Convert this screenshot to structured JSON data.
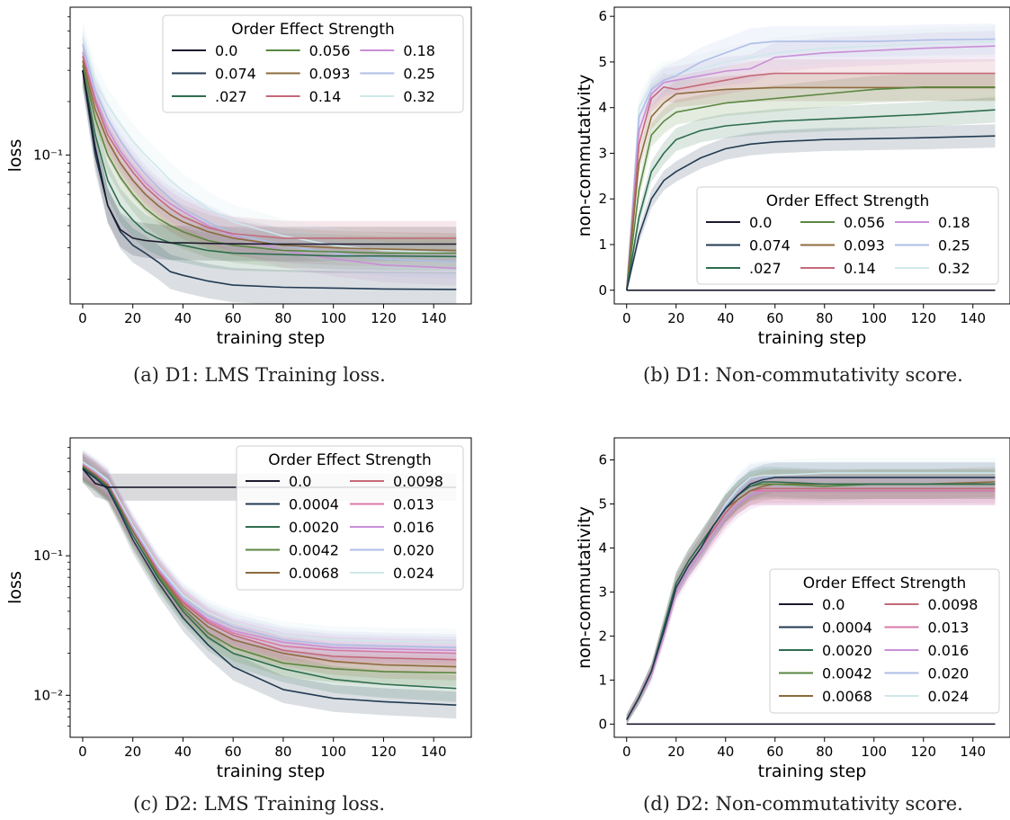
{
  "chart_data": [
    {
      "type": "line",
      "caption": "(a) D1: LMS Training loss.",
      "xlabel": "training step",
      "ylabel": "loss",
      "xticks": [
        "0",
        "20",
        "40",
        "60",
        "80",
        "100",
        "120",
        "140"
      ],
      "yticks": [
        {
          "value": 0.1,
          "label": "10⁻¹"
        }
      ],
      "yscale": "log",
      "xlim": [
        0,
        150
      ],
      "ylim": [
        0.0145,
        0.68
      ],
      "legend": {
        "title": "Order Effect Strength",
        "placement": "top-right",
        "ncol": 3
      },
      "x": [
        0,
        5,
        10,
        15,
        20,
        25,
        30,
        35,
        40,
        50,
        60,
        80,
        100,
        120,
        149
      ],
      "series": [
        {
          "name": "0.0",
          "color": "#1a1a2e",
          "values": [
            0.3,
            0.11,
            0.052,
            0.038,
            0.034,
            0.033,
            0.0325,
            0.032,
            0.032,
            0.0318,
            0.0316,
            0.0315,
            0.0315,
            0.0315,
            0.0315
          ]
        },
        {
          "name": "0.074",
          "color": "#223a52",
          "values": [
            0.3,
            0.1,
            0.052,
            0.037,
            0.031,
            0.028,
            0.025,
            0.022,
            0.021,
            0.0195,
            0.0185,
            0.018,
            0.0178,
            0.0176,
            0.0175
          ]
        },
        {
          "name": ".027",
          "color": "#2e6d4e",
          "values": [
            0.3,
            0.13,
            0.072,
            0.052,
            0.043,
            0.037,
            0.034,
            0.032,
            0.031,
            0.029,
            0.028,
            0.0275,
            0.027,
            0.027,
            0.0268
          ]
        },
        {
          "name": "0.056",
          "color": "#5a8741",
          "values": [
            0.32,
            0.16,
            0.1,
            0.075,
            0.06,
            0.05,
            0.044,
            0.04,
            0.037,
            0.033,
            0.031,
            0.029,
            0.0285,
            0.028,
            0.028
          ]
        },
        {
          "name": "0.093",
          "color": "#8c6b3c",
          "values": [
            0.34,
            0.18,
            0.12,
            0.09,
            0.072,
            0.06,
            0.052,
            0.046,
            0.042,
            0.037,
            0.034,
            0.031,
            0.03,
            0.0295,
            0.029
          ]
        },
        {
          "name": "0.14",
          "color": "#c46a7a",
          "values": [
            0.36,
            0.2,
            0.13,
            0.1,
            0.08,
            0.066,
            0.057,
            0.05,
            0.045,
            0.039,
            0.036,
            0.034,
            0.034,
            0.034,
            0.034
          ]
        },
        {
          "name": "0.18",
          "color": "#c98fd6",
          "values": [
            0.38,
            0.21,
            0.14,
            0.105,
            0.085,
            0.07,
            0.06,
            0.053,
            0.048,
            0.04,
            0.035,
            0.029,
            0.026,
            0.024,
            0.023
          ]
        },
        {
          "name": "0.25",
          "color": "#aebee6",
          "values": [
            0.42,
            0.23,
            0.16,
            0.12,
            0.095,
            0.078,
            0.066,
            0.057,
            0.05,
            0.042,
            0.036,
            0.031,
            0.028,
            0.026,
            0.025
          ]
        },
        {
          "name": "0.32",
          "color": "#cfe8ea",
          "values": [
            0.46,
            0.26,
            0.19,
            0.15,
            0.12,
            0.1,
            0.085,
            0.072,
            0.063,
            0.05,
            0.042,
            0.035,
            0.031,
            0.029,
            0.028
          ]
        }
      ]
    },
    {
      "type": "line",
      "caption": "(b) D1: Non-commutativity score.",
      "xlabel": "training step",
      "ylabel": "non-commutativity",
      "xticks": [
        "0",
        "20",
        "40",
        "60",
        "80",
        "100",
        "120",
        "140"
      ],
      "yticks": [
        {
          "value": 0,
          "label": "0"
        },
        {
          "value": 1,
          "label": "1"
        },
        {
          "value": 2,
          "label": "2"
        },
        {
          "value": 3,
          "label": "3"
        },
        {
          "value": 4,
          "label": "4"
        },
        {
          "value": 5,
          "label": "5"
        },
        {
          "value": 6,
          "label": "6"
        }
      ],
      "yscale": "linear",
      "xlim": [
        0,
        150
      ],
      "ylim": [
        -0.3,
        6.2
      ],
      "legend": {
        "title": "Order Effect Strength",
        "placement": "lower-right",
        "ncol": 3
      },
      "x": [
        0,
        5,
        10,
        15,
        20,
        30,
        40,
        50,
        60,
        80,
        100,
        120,
        149
      ],
      "series": [
        {
          "name": "0.0",
          "color": "#1a1a2e",
          "values": [
            0,
            0,
            0,
            0,
            0,
            0,
            0,
            0,
            0,
            0,
            0,
            0,
            0
          ]
        },
        {
          "name": "0.074",
          "color": "#223a52",
          "values": [
            0,
            1.2,
            2.0,
            2.4,
            2.6,
            2.9,
            3.1,
            3.2,
            3.25,
            3.3,
            3.32,
            3.34,
            3.38
          ]
        },
        {
          "name": ".027",
          "color": "#2e6d4e",
          "values": [
            0,
            1.6,
            2.6,
            3.0,
            3.3,
            3.5,
            3.6,
            3.65,
            3.7,
            3.75,
            3.8,
            3.85,
            3.95
          ]
        },
        {
          "name": "0.056",
          "color": "#5a8741",
          "values": [
            0,
            2.2,
            3.4,
            3.7,
            3.9,
            4.0,
            4.1,
            4.15,
            4.2,
            4.3,
            4.4,
            4.45,
            4.45
          ]
        },
        {
          "name": "0.093",
          "color": "#8c6b3c",
          "values": [
            0,
            2.8,
            3.8,
            4.1,
            4.3,
            4.35,
            4.4,
            4.42,
            4.44,
            4.44,
            4.44,
            4.44,
            4.44
          ]
        },
        {
          "name": "0.14",
          "color": "#c46a7a",
          "values": [
            0,
            3.2,
            4.2,
            4.45,
            4.4,
            4.5,
            4.6,
            4.7,
            4.75,
            4.75,
            4.75,
            4.75,
            4.75
          ]
        },
        {
          "name": "0.18",
          "color": "#c98fd6",
          "values": [
            0,
            3.5,
            4.3,
            4.55,
            4.6,
            4.7,
            4.8,
            4.85,
            5.1,
            5.2,
            5.25,
            5.3,
            5.35
          ]
        },
        {
          "name": "0.25",
          "color": "#aebee6",
          "values": [
            0,
            3.8,
            4.4,
            4.6,
            4.7,
            5.0,
            5.2,
            5.4,
            5.45,
            5.45,
            5.45,
            5.48,
            5.5
          ]
        },
        {
          "name": "0.32",
          "color": "#cfe8ea",
          "values": [
            0,
            4.0,
            4.5,
            4.7,
            4.75,
            4.85,
            5.0,
            5.1,
            5.2,
            5.3,
            5.35,
            5.4,
            5.45
          ]
        }
      ]
    },
    {
      "type": "line",
      "caption": "(c) D2: LMS Training loss.",
      "xlabel": "training step",
      "ylabel": "loss",
      "xticks": [
        "0",
        "20",
        "40",
        "60",
        "80",
        "100",
        "120",
        "140"
      ],
      "yticks": [
        {
          "value": 0.1,
          "label": "10⁻¹"
        },
        {
          "value": 0.01,
          "label": "10⁻²"
        }
      ],
      "yscale": "log",
      "xlim": [
        0,
        150
      ],
      "ylim": [
        0.005,
        0.7
      ],
      "legend": {
        "title": "Order Effect Strength",
        "placement": "top-right",
        "ncol": 2
      },
      "x": [
        0,
        5,
        10,
        15,
        20,
        30,
        40,
        50,
        60,
        80,
        100,
        120,
        149
      ],
      "series": [
        {
          "name": "0.0",
          "color": "#1a1a2e",
          "values": [
            0.42,
            0.33,
            0.31,
            0.31,
            0.31,
            0.31,
            0.31,
            0.31,
            0.31,
            0.31,
            0.31,
            0.31,
            0.31
          ]
        },
        {
          "name": "0.0004",
          "color": "#223a52",
          "values": [
            0.42,
            0.36,
            0.3,
            0.2,
            0.13,
            0.065,
            0.036,
            0.023,
            0.016,
            0.011,
            0.0095,
            0.009,
            0.0085
          ]
        },
        {
          "name": "0.0020",
          "color": "#2e6d4e",
          "values": [
            0.43,
            0.37,
            0.31,
            0.21,
            0.14,
            0.07,
            0.04,
            0.026,
            0.02,
            0.0155,
            0.013,
            0.012,
            0.0112
          ]
        },
        {
          "name": "0.0042",
          "color": "#5a8741",
          "values": [
            0.43,
            0.37,
            0.31,
            0.21,
            0.14,
            0.072,
            0.042,
            0.028,
            0.022,
            0.017,
            0.0155,
            0.0148,
            0.0145
          ]
        },
        {
          "name": "0.0068",
          "color": "#8c6b3c",
          "values": [
            0.44,
            0.38,
            0.32,
            0.22,
            0.15,
            0.075,
            0.044,
            0.031,
            0.025,
            0.02,
            0.0175,
            0.0165,
            0.016
          ]
        },
        {
          "name": "0.0098",
          "color": "#c46a7a",
          "values": [
            0.44,
            0.38,
            0.32,
            0.22,
            0.15,
            0.077,
            0.046,
            0.033,
            0.027,
            0.021,
            0.019,
            0.0185,
            0.018
          ]
        },
        {
          "name": "0.013",
          "color": "#d879a8",
          "values": [
            0.45,
            0.39,
            0.33,
            0.22,
            0.15,
            0.078,
            0.047,
            0.034,
            0.028,
            0.0225,
            0.021,
            0.0205,
            0.02
          ]
        },
        {
          "name": "0.016",
          "color": "#c98fd6",
          "values": [
            0.45,
            0.39,
            0.33,
            0.23,
            0.155,
            0.08,
            0.048,
            0.035,
            0.029,
            0.024,
            0.022,
            0.0215,
            0.021
          ]
        },
        {
          "name": "0.020",
          "color": "#aebee6",
          "values": [
            0.46,
            0.4,
            0.34,
            0.23,
            0.16,
            0.082,
            0.05,
            0.037,
            0.031,
            0.025,
            0.023,
            0.0225,
            0.022
          ]
        },
        {
          "name": "0.024",
          "color": "#cfe8ea",
          "values": [
            0.47,
            0.41,
            0.35,
            0.24,
            0.165,
            0.085,
            0.052,
            0.039,
            0.033,
            0.027,
            0.025,
            0.0245,
            0.024
          ]
        }
      ]
    },
    {
      "type": "line",
      "caption": "(d) D2: Non-commutativity score.",
      "xlabel": "training step",
      "ylabel": "non-commutativity",
      "xticks": [
        "0",
        "20",
        "40",
        "60",
        "80",
        "100",
        "120",
        "140"
      ],
      "yticks": [
        {
          "value": 0,
          "label": "0"
        },
        {
          "value": 1,
          "label": "1"
        },
        {
          "value": 2,
          "label": "2"
        },
        {
          "value": 3,
          "label": "3"
        },
        {
          "value": 4,
          "label": "4"
        },
        {
          "value": 5,
          "label": "5"
        },
        {
          "value": 6,
          "label": "6"
        }
      ],
      "yscale": "linear",
      "xlim": [
        0,
        150
      ],
      "ylim": [
        -0.3,
        6.5
      ],
      "legend": {
        "title": "Order Effect Strength",
        "placement": "lower-right",
        "ncol": 2
      },
      "x": [
        0,
        5,
        10,
        15,
        20,
        25,
        30,
        35,
        40,
        45,
        50,
        55,
        60,
        80,
        100,
        120,
        149
      ],
      "series": [
        {
          "name": "0.0",
          "color": "#1a1a2e",
          "values": [
            0,
            0,
            0,
            0,
            0,
            0,
            0,
            0,
            0,
            0,
            0,
            0,
            0,
            0,
            0,
            0,
            0
          ]
        },
        {
          "name": "0.0004",
          "color": "#223a52",
          "values": [
            0.1,
            0.6,
            1.2,
            2.1,
            3.1,
            3.6,
            4.0,
            4.5,
            4.9,
            5.2,
            5.45,
            5.55,
            5.6,
            5.6,
            5.6,
            5.6,
            5.6
          ]
        },
        {
          "name": "0.0020",
          "color": "#2e6d4e",
          "values": [
            0.1,
            0.6,
            1.2,
            2.2,
            3.2,
            3.7,
            4.1,
            4.5,
            4.9,
            5.2,
            5.4,
            5.5,
            5.5,
            5.45,
            5.45,
            5.45,
            5.45
          ]
        },
        {
          "name": "0.0042",
          "color": "#5a8741",
          "values": [
            0.1,
            0.6,
            1.2,
            2.2,
            3.2,
            3.7,
            4.1,
            4.5,
            4.9,
            5.2,
            5.4,
            5.45,
            5.45,
            5.4,
            5.45,
            5.45,
            5.45
          ]
        },
        {
          "name": "0.0068",
          "color": "#8c6b3c",
          "values": [
            0.1,
            0.6,
            1.2,
            2.2,
            3.2,
            3.7,
            4.1,
            4.5,
            4.9,
            5.1,
            5.3,
            5.4,
            5.45,
            5.45,
            5.45,
            5.45,
            5.5
          ]
        },
        {
          "name": "0.0098",
          "color": "#c46a7a",
          "values": [
            0.1,
            0.6,
            1.2,
            2.1,
            3.1,
            3.6,
            4.0,
            4.4,
            4.8,
            5.1,
            5.3,
            5.35,
            5.35,
            5.35,
            5.35,
            5.35,
            5.35
          ]
        },
        {
          "name": "0.013",
          "color": "#d879a8",
          "values": [
            0.1,
            0.6,
            1.2,
            2.1,
            3.1,
            3.6,
            4.0,
            4.4,
            4.8,
            5.1,
            5.3,
            5.3,
            5.3,
            5.3,
            5.3,
            5.3,
            5.3
          ]
        },
        {
          "name": "0.016",
          "color": "#c98fd6",
          "values": [
            0.1,
            0.6,
            1.1,
            2.0,
            3.0,
            3.5,
            3.9,
            4.3,
            4.7,
            5.0,
            5.2,
            5.3,
            5.3,
            5.3,
            5.3,
            5.3,
            5.3
          ]
        },
        {
          "name": "0.020",
          "color": "#aebee6",
          "values": [
            0.1,
            0.6,
            1.2,
            2.2,
            3.2,
            3.7,
            4.1,
            4.5,
            4.95,
            5.3,
            5.55,
            5.6,
            5.6,
            5.6,
            5.6,
            5.6,
            5.6
          ]
        },
        {
          "name": "0.024",
          "color": "#cfe8ea",
          "values": [
            0.1,
            0.6,
            1.2,
            2.2,
            3.2,
            3.7,
            4.1,
            4.5,
            5.0,
            5.35,
            5.6,
            5.65,
            5.65,
            5.7,
            5.7,
            5.7,
            5.7
          ]
        }
      ]
    }
  ]
}
